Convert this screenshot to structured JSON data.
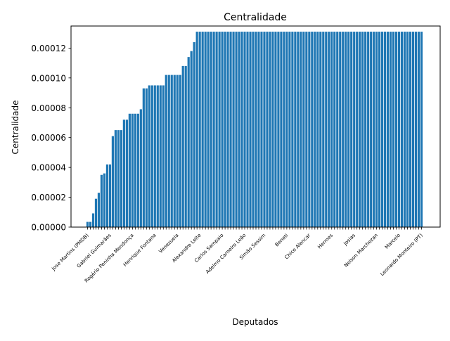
{
  "chart_data": {
    "type": "bar",
    "title": "Centralidade",
    "xlabel": "Deputados",
    "ylabel": "Centralidade",
    "ylim": [
      0,
      0.0001348
    ],
    "yticks": [
      "0.00000",
      "0.00002",
      "0.00004",
      "0.00006",
      "0.00008",
      "0.00010",
      "0.00012"
    ],
    "ytick_values": [
      0,
      2e-05,
      4e-05,
      6e-05,
      8e-05,
      0.0001,
      0.00012
    ],
    "bar_color": "#1f77b4",
    "grid": false,
    "values": [
      3.5e-06,
      3.5e-06,
      9.2e-06,
      1.9e-05,
      2.3e-05,
      3.5e-05,
      3.6e-05,
      4.2e-05,
      4.2e-05,
      6.1e-05,
      6.5e-05,
      6.5e-05,
      6.5e-05,
      7.2e-05,
      7.2e-05,
      7.6e-05,
      7.6e-05,
      7.6e-05,
      7.6e-05,
      7.9e-05,
      9.3e-05,
      9.3e-05,
      9.5e-05,
      9.5e-05,
      9.5e-05,
      9.5e-05,
      9.5e-05,
      9.5e-05,
      0.000102,
      0.000102,
      0.000102,
      0.000102,
      0.000102,
      0.000102,
      0.000108,
      0.000108,
      0.000114,
      0.000118,
      0.000124,
      0.000131,
      0.000131,
      0.000131,
      0.000131,
      0.000131,
      0.000131,
      0.000131,
      0.000131,
      0.000131,
      0.000131,
      0.000131,
      0.000131,
      0.000131,
      0.000131,
      0.000131,
      0.000131,
      0.000131,
      0.000131,
      0.000131,
      0.000131,
      0.000131,
      0.000131,
      0.000131,
      0.000131,
      0.000131,
      0.000131,
      0.000131,
      0.000131,
      0.000131,
      0.000131,
      0.000131,
      0.000131,
      0.000131,
      0.000131,
      0.000131,
      0.000131,
      0.000131,
      0.000131,
      0.000131,
      0.000131,
      0.000131,
      0.000131,
      0.000131,
      0.000131,
      0.000131,
      0.000131,
      0.000131,
      0.000131,
      0.000131,
      0.000131,
      0.000131,
      0.000131,
      0.000131,
      0.000131,
      0.000131,
      0.000131,
      0.000131,
      0.000131,
      0.000131,
      0.000131,
      0.000131,
      0.000131,
      0.000131,
      0.000131,
      0.000131,
      0.000131,
      0.000131,
      0.000131,
      0.000131,
      0.000131,
      0.000131,
      0.000131,
      0.000131,
      0.000131,
      0.000131,
      0.000131,
      0.000131,
      0.000131,
      0.000131,
      0.000131,
      0.000131
    ],
    "x_tick_labels_legible": [
      "Jose Martins (PMDB)",
      "Gabriel Guimarães",
      "Rogério Peninha Mendonça",
      "Henrique Fontana",
      "Venezuela",
      "Alexandre Leite",
      "Carlos Sampaio",
      "Adelmo Carneiro Leão",
      "Simão Sessim",
      "Beneti",
      "Chico Alencar",
      "Hermes",
      "Josias",
      "Nelson Marchezan",
      "Marcelo",
      "Leonardo Monteiro (PT)"
    ]
  }
}
